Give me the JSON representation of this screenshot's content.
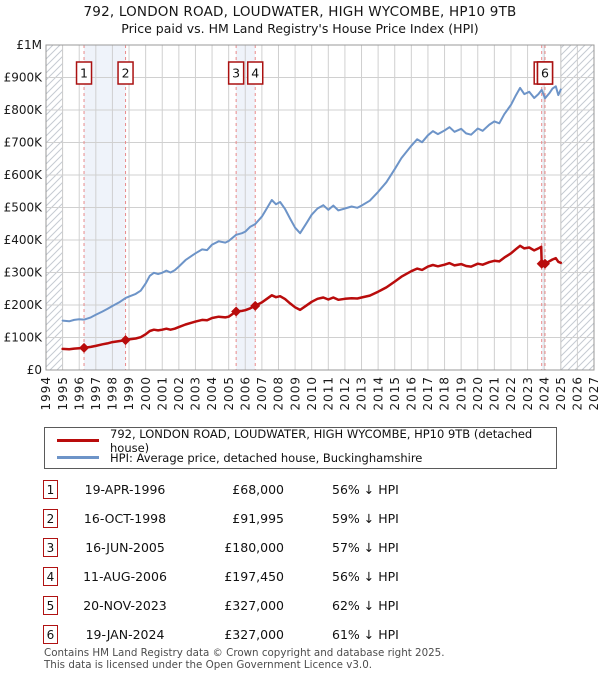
{
  "title": "792, LONDON ROAD, LOUDWATER, HIGH WYCOMBE, HP10 9TB",
  "subtitle": "Price paid vs. HM Land Registry's House Price Index (HPI)",
  "chart_data": {
    "type": "line",
    "x_axis": {
      "min": 1994,
      "max": 2027,
      "years": [
        1994,
        1995,
        1996,
        1997,
        1998,
        1999,
        2000,
        2001,
        2002,
        2003,
        2004,
        2005,
        2006,
        2007,
        2008,
        2009,
        2010,
        2011,
        2012,
        2013,
        2014,
        2015,
        2016,
        2017,
        2018,
        2019,
        2020,
        2021,
        2022,
        2023,
        2024,
        2025,
        2026,
        2027
      ]
    },
    "y_axis": {
      "min": 0,
      "max": 1000000,
      "unit": "GBP",
      "tick_labels": [
        "£1M",
        "£900K",
        "£800K",
        "£700K",
        "£600K",
        "£500K",
        "£400K",
        "£300K",
        "£200K",
        "£100K",
        "£0"
      ],
      "tick_values": [
        1000,
        900,
        800,
        700,
        600,
        500,
        400,
        300,
        200,
        100,
        0
      ]
    },
    "grid": true,
    "legend_position": "below",
    "colors": {
      "price_line": "#b90c0c",
      "hpi_line": "#6d94c8",
      "event_dash": "#e98b8b",
      "event_band": "#dbe5f5",
      "flag_border": "#aa1111",
      "grid": "#d0d0d0",
      "plot_border": "#999999",
      "hatch": "#c5cad2"
    },
    "hatched_regions": [
      [
        1994,
        1995
      ],
      [
        2025,
        2027
      ]
    ],
    "event_bands": [
      [
        1996.29,
        1998.79
      ],
      [
        2005.45,
        2006.6
      ],
      [
        2023.85,
        2024.05
      ]
    ],
    "flags": [
      {
        "num": "1",
        "year": 1996.29
      },
      {
        "num": "2",
        "year": 1998.79
      },
      {
        "num": "3",
        "year": 2005.45
      },
      {
        "num": "4",
        "year": 2006.6
      },
      {
        "num": "5",
        "year": 2023.85
      },
      {
        "num": "6",
        "year": 2024.05
      }
    ],
    "sales_markers": [
      {
        "num": "1",
        "year": 1996.29,
        "value_k": 68
      },
      {
        "num": "2",
        "year": 1998.79,
        "value_k": 92
      },
      {
        "num": "3",
        "year": 2005.45,
        "value_k": 180
      },
      {
        "num": "4",
        "year": 2006.6,
        "value_k": 197.45
      },
      {
        "num": "5",
        "year": 2023.85,
        "value_k": 327
      },
      {
        "num": "6",
        "year": 2024.05,
        "value_k": 327
      }
    ],
    "series": [
      {
        "name": "792, LONDON ROAD, LOUDWATER, HIGH WYCOMBE, HP10 9TB (detached house)",
        "color": "#b90c0c",
        "width": 2.5,
        "unit": "GBP_thousands",
        "points": [
          [
            1995,
            65
          ],
          [
            1995.4,
            64
          ],
          [
            1995.7,
            66
          ],
          [
            1996,
            67
          ],
          [
            1996.29,
            68
          ],
          [
            1996.7,
            71
          ],
          [
            1997,
            74
          ],
          [
            1997.4,
            79
          ],
          [
            1997.7,
            82
          ],
          [
            1998,
            86
          ],
          [
            1998.4,
            89
          ],
          [
            1998.79,
            92
          ],
          [
            1999,
            94
          ],
          [
            1999.4,
            97
          ],
          [
            1999.7,
            101
          ],
          [
            2000,
            110
          ],
          [
            2000.25,
            120
          ],
          [
            2000.5,
            124
          ],
          [
            2000.75,
            122
          ],
          [
            2001,
            124
          ],
          [
            2001.25,
            127
          ],
          [
            2001.5,
            124
          ],
          [
            2001.75,
            127
          ],
          [
            2002,
            132
          ],
          [
            2002.4,
            140
          ],
          [
            2002.8,
            146
          ],
          [
            2003,
            149
          ],
          [
            2003.4,
            154
          ],
          [
            2003.7,
            153
          ],
          [
            2004,
            160
          ],
          [
            2004.4,
            164
          ],
          [
            2004.8,
            162
          ],
          [
            2005,
            164
          ],
          [
            2005.45,
            180
          ],
          [
            2005.8,
            182
          ],
          [
            2006,
            184
          ],
          [
            2006.3,
            190
          ],
          [
            2006.6,
            197.45
          ],
          [
            2007,
            208
          ],
          [
            2007.3,
            219
          ],
          [
            2007.6,
            230
          ],
          [
            2007.85,
            224
          ],
          [
            2008.1,
            227
          ],
          [
            2008.4,
            218
          ],
          [
            2008.7,
            205
          ],
          [
            2009,
            193
          ],
          [
            2009.3,
            185
          ],
          [
            2009.7,
            199
          ],
          [
            2010,
            210
          ],
          [
            2010.35,
            219
          ],
          [
            2010.7,
            223
          ],
          [
            2011,
            217
          ],
          [
            2011.3,
            223
          ],
          [
            2011.6,
            216
          ],
          [
            2012,
            219
          ],
          [
            2012.4,
            221
          ],
          [
            2012.75,
            220
          ],
          [
            2013,
            223
          ],
          [
            2013.5,
            229
          ],
          [
            2014,
            241
          ],
          [
            2014.5,
            254
          ],
          [
            2015,
            272
          ],
          [
            2015.4,
            287
          ],
          [
            2016,
            304
          ],
          [
            2016.35,
            312
          ],
          [
            2016.65,
            308
          ],
          [
            2017,
            318
          ],
          [
            2017.3,
            323
          ],
          [
            2017.6,
            319
          ],
          [
            2018,
            324
          ],
          [
            2018.3,
            329
          ],
          [
            2018.6,
            322
          ],
          [
            2019,
            326
          ],
          [
            2019.3,
            320
          ],
          [
            2019.6,
            318
          ],
          [
            2020,
            327
          ],
          [
            2020.3,
            324
          ],
          [
            2020.7,
            332
          ],
          [
            2021,
            336
          ],
          [
            2021.3,
            334
          ],
          [
            2021.6,
            346
          ],
          [
            2022,
            359
          ],
          [
            2022.3,
            372
          ],
          [
            2022.55,
            382
          ],
          [
            2022.8,
            374
          ],
          [
            2023.1,
            377
          ],
          [
            2023.4,
            368
          ],
          [
            2023.65,
            374
          ],
          [
            2023.82,
            379
          ],
          [
            2023.85,
            327
          ],
          [
            2024.05,
            327
          ],
          [
            2024.3,
            334
          ],
          [
            2024.5,
            340
          ],
          [
            2024.7,
            344
          ],
          [
            2024.85,
            333
          ],
          [
            2025,
            330
          ]
        ]
      },
      {
        "name": "HPI: Average price, detached house, Buckinghamshire",
        "color": "#6d94c8",
        "width": 2,
        "unit": "GBP_thousands",
        "points": [
          [
            1995,
            152
          ],
          [
            1995.4,
            150
          ],
          [
            1995.7,
            154
          ],
          [
            1996,
            156
          ],
          [
            1996.3,
            155
          ],
          [
            1996.7,
            162
          ],
          [
            1997,
            170
          ],
          [
            1997.4,
            180
          ],
          [
            1997.7,
            188
          ],
          [
            1998,
            197
          ],
          [
            1998.4,
            208
          ],
          [
            1998.8,
            222
          ],
          [
            1999,
            226
          ],
          [
            1999.4,
            234
          ],
          [
            1999.7,
            244
          ],
          [
            2000,
            266
          ],
          [
            2000.25,
            290
          ],
          [
            2000.5,
            299
          ],
          [
            2000.75,
            295
          ],
          [
            2001,
            299
          ],
          [
            2001.25,
            306
          ],
          [
            2001.5,
            300
          ],
          [
            2001.75,
            307
          ],
          [
            2002,
            318
          ],
          [
            2002.4,
            338
          ],
          [
            2002.8,
            352
          ],
          [
            2003,
            359
          ],
          [
            2003.4,
            371
          ],
          [
            2003.7,
            369
          ],
          [
            2004,
            386
          ],
          [
            2004.4,
            396
          ],
          [
            2004.8,
            392
          ],
          [
            2005,
            397
          ],
          [
            2005.45,
            416
          ],
          [
            2005.8,
            421
          ],
          [
            2006,
            426
          ],
          [
            2006.3,
            441
          ],
          [
            2006.6,
            449
          ],
          [
            2007,
            472
          ],
          [
            2007.3,
            498
          ],
          [
            2007.6,
            523
          ],
          [
            2007.85,
            510
          ],
          [
            2008.1,
            517
          ],
          [
            2008.4,
            495
          ],
          [
            2008.7,
            466
          ],
          [
            2009,
            438
          ],
          [
            2009.3,
            421
          ],
          [
            2009.7,
            453
          ],
          [
            2010,
            478
          ],
          [
            2010.35,
            497
          ],
          [
            2010.7,
            507
          ],
          [
            2011,
            493
          ],
          [
            2011.3,
            506
          ],
          [
            2011.6,
            491
          ],
          [
            2012,
            497
          ],
          [
            2012.4,
            503
          ],
          [
            2012.75,
            499
          ],
          [
            2013,
            506
          ],
          [
            2013.5,
            521
          ],
          [
            2014,
            548
          ],
          [
            2014.5,
            578
          ],
          [
            2015,
            618
          ],
          [
            2015.4,
            652
          ],
          [
            2016,
            690
          ],
          [
            2016.35,
            710
          ],
          [
            2016.65,
            701
          ],
          [
            2017,
            722
          ],
          [
            2017.3,
            735
          ],
          [
            2017.6,
            726
          ],
          [
            2018,
            737
          ],
          [
            2018.3,
            747
          ],
          [
            2018.6,
            733
          ],
          [
            2019,
            742
          ],
          [
            2019.3,
            728
          ],
          [
            2019.6,
            724
          ],
          [
            2020,
            743
          ],
          [
            2020.3,
            736
          ],
          [
            2020.7,
            755
          ],
          [
            2021,
            765
          ],
          [
            2021.3,
            759
          ],
          [
            2021.6,
            787
          ],
          [
            2022,
            816
          ],
          [
            2022.3,
            846
          ],
          [
            2022.55,
            868
          ],
          [
            2022.8,
            849
          ],
          [
            2023.1,
            856
          ],
          [
            2023.4,
            837
          ],
          [
            2023.65,
            849
          ],
          [
            2023.85,
            862
          ],
          [
            2024.05,
            836
          ],
          [
            2024.3,
            851
          ],
          [
            2024.5,
            866
          ],
          [
            2024.7,
            873
          ],
          [
            2024.85,
            846
          ],
          [
            2025,
            863
          ]
        ]
      }
    ]
  },
  "legend": {
    "entries": [
      {
        "label": "792, LONDON ROAD, LOUDWATER, HIGH WYCOMBE, HP10 9TB (detached house)",
        "color": "#b90c0c"
      },
      {
        "label": "HPI: Average price, detached house, Buckinghamshire",
        "color": "#6d94c8"
      }
    ]
  },
  "table": {
    "rows": [
      {
        "num": "1",
        "date": "19-APR-1996",
        "price": "£68,000",
        "hpi": "56% ↓ HPI"
      },
      {
        "num": "2",
        "date": "16-OCT-1998",
        "price": "£91,995",
        "hpi": "59% ↓ HPI"
      },
      {
        "num": "3",
        "date": "16-JUN-2005",
        "price": "£180,000",
        "hpi": "57% ↓ HPI"
      },
      {
        "num": "4",
        "date": "11-AUG-2006",
        "price": "£197,450",
        "hpi": "56% ↓ HPI"
      },
      {
        "num": "5",
        "date": "20-NOV-2023",
        "price": "£327,000",
        "hpi": "62% ↓ HPI"
      },
      {
        "num": "6",
        "date": "19-JAN-2024",
        "price": "£327,000",
        "hpi": "61% ↓ HPI"
      }
    ]
  },
  "footer": {
    "line1": "Contains HM Land Registry data © Crown copyright and database right 2025.",
    "line2": "This data is licensed under the Open Government Licence v3.0."
  }
}
